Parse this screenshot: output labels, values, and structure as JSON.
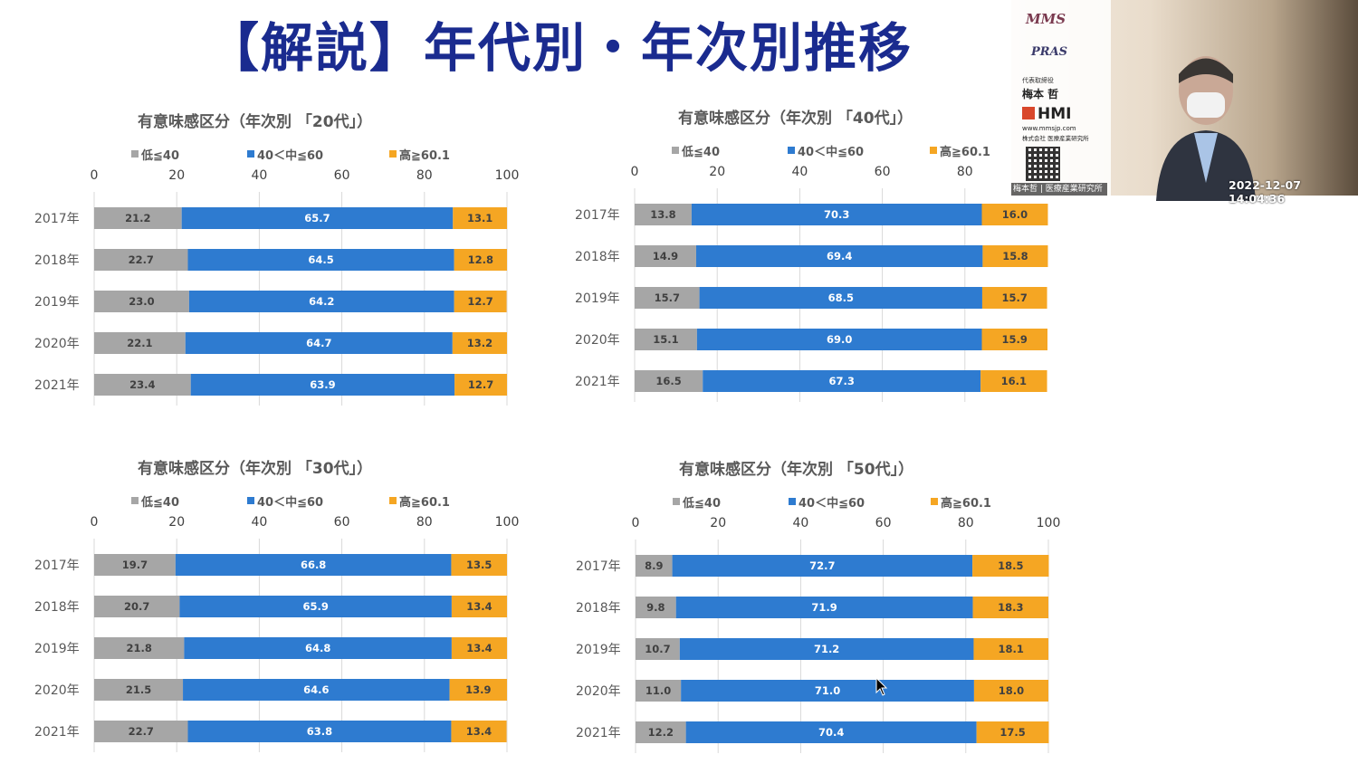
{
  "slide": {
    "title": "【解説】年代別・年次別推移"
  },
  "presenter": {
    "logo_mms": "MMS",
    "logo_pras": "PRAS",
    "role": "代表取締役",
    "name": "梅本 哲",
    "logo_hmi": "HMI",
    "url": "www.mmsjp.com",
    "company": "株式会社 医療産業研究所",
    "caption": "梅本哲 | 医療産業研究所",
    "timestamp": "2022-12-07  14:04:36"
  },
  "colors": {
    "low": "#a6a6a6",
    "mid": "#2e7bd0",
    "high": "#f5a623",
    "grid": "#d9d9d9"
  },
  "chart_data": [
    {
      "type": "bar",
      "stacked": true,
      "orientation": "horizontal",
      "title": "有意味感区分（年次別 「20代」）",
      "categories": [
        "2017年",
        "2018年",
        "2019年",
        "2020年",
        "2021年"
      ],
      "series": [
        {
          "name": "低≦40",
          "values": [
            21.2,
            22.7,
            23.0,
            22.1,
            23.4
          ]
        },
        {
          "name": "40＜中≦60",
          "values": [
            65.7,
            64.5,
            64.2,
            64.7,
            63.9
          ]
        },
        {
          "name": "高≧60.1",
          "values": [
            13.1,
            12.8,
            12.7,
            13.2,
            12.7
          ]
        }
      ],
      "xlim": [
        0,
        100
      ],
      "xticks": [
        "0",
        "20",
        "40",
        "60",
        "80",
        "100"
      ]
    },
    {
      "type": "bar",
      "stacked": true,
      "orientation": "horizontal",
      "title": "有意味感区分（年次別 「40代」）",
      "categories": [
        "2017年",
        "2018年",
        "2019年",
        "2020年",
        "2021年"
      ],
      "series": [
        {
          "name": "低≦40",
          "values": [
            13.8,
            14.9,
            15.7,
            15.1,
            16.5
          ]
        },
        {
          "name": "40＜中≦60",
          "values": [
            70.3,
            69.4,
            68.5,
            69.0,
            67.3
          ]
        },
        {
          "name": "高≧60.1",
          "values": [
            16.0,
            15.8,
            15.7,
            15.9,
            16.1
          ]
        }
      ],
      "xlim": [
        0,
        100
      ],
      "xticks": [
        "0",
        "20",
        "40",
        "60",
        "80"
      ]
    },
    {
      "type": "bar",
      "stacked": true,
      "orientation": "horizontal",
      "title": "有意味感区分（年次別 「30代」）",
      "categories": [
        "2017年",
        "2018年",
        "2019年",
        "2020年",
        "2021年"
      ],
      "series": [
        {
          "name": "低≦40",
          "values": [
            19.7,
            20.7,
            21.8,
            21.5,
            22.7
          ]
        },
        {
          "name": "40＜中≦60",
          "values": [
            66.8,
            65.9,
            64.8,
            64.6,
            63.8
          ]
        },
        {
          "name": "高≧60.1",
          "values": [
            13.5,
            13.4,
            13.4,
            13.9,
            13.4
          ]
        }
      ],
      "xlim": [
        0,
        100
      ],
      "xticks": [
        "0",
        "20",
        "40",
        "60",
        "80",
        "100"
      ]
    },
    {
      "type": "bar",
      "stacked": true,
      "orientation": "horizontal",
      "title": "有意味感区分（年次別 「50代」）",
      "categories": [
        "2017年",
        "2018年",
        "2019年",
        "2020年",
        "2021年"
      ],
      "series": [
        {
          "name": "低≦40",
          "values": [
            8.9,
            9.8,
            10.7,
            11.0,
            12.2
          ]
        },
        {
          "name": "40＜中≦60",
          "values": [
            72.7,
            71.9,
            71.2,
            71.0,
            70.4
          ]
        },
        {
          "name": "高≧60.1",
          "values": [
            18.5,
            18.3,
            18.1,
            18.0,
            17.5
          ]
        }
      ],
      "xlim": [
        0,
        100
      ],
      "xticks": [
        "0",
        "20",
        "40",
        "60",
        "80",
        "100"
      ]
    }
  ]
}
